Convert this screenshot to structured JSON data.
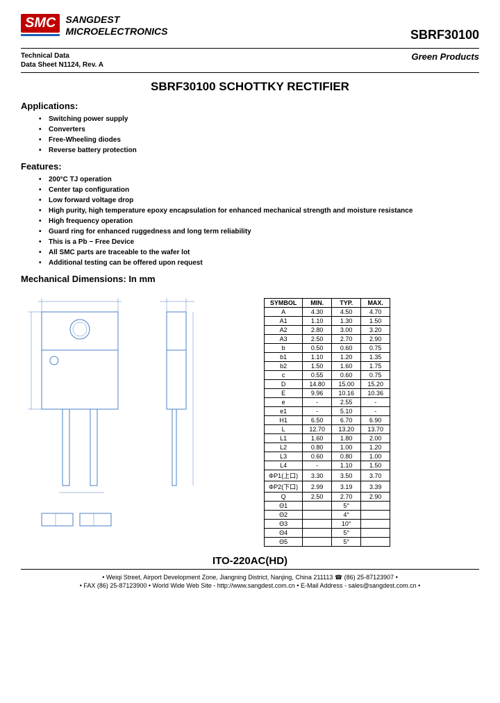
{
  "header": {
    "logo_text": "SMC",
    "company_line1": "SANGDEST",
    "company_line2": "MICROELECTRONICS",
    "part_number": "SBRF30100"
  },
  "subheader": {
    "tech_line1": "Technical Data",
    "tech_line2": "Data Sheet N1124, Rev. A",
    "green": "Green Products"
  },
  "title": "SBRF30100 SCHOTTKY RECTIFIER",
  "applications": {
    "heading": "Applications:",
    "items": [
      "Switching power supply",
      "Converters",
      "Free-Wheeling diodes",
      "Reverse battery protection"
    ]
  },
  "features": {
    "heading": "Features:",
    "items": [
      "200°C TJ operation",
      "Center tap configuration",
      "Low forward voltage drop",
      "High purity, high temperature epoxy encapsulation for enhanced mechanical strength and moisture resistance",
      "High frequency operation",
      "Guard ring for enhanced ruggedness and long term reliability",
      "This is a Pb − Free Device",
      "All SMC parts are traceable to the wafer lot",
      "Additional testing can be offered upon request"
    ]
  },
  "mech": {
    "heading": "Mechanical Dimensions: In mm"
  },
  "dim_table": {
    "headers": [
      "SYMBOL",
      "MIN.",
      "TYP.",
      "MAX."
    ],
    "rows": [
      [
        "A",
        "4.30",
        "4.50",
        "4.70"
      ],
      [
        "A1",
        "1.10",
        "1.30",
        "1.50"
      ],
      [
        "A2",
        "2.80",
        "3.00",
        "3.20"
      ],
      [
        "A3",
        "2.50",
        "2.70",
        "2.90"
      ],
      [
        "b",
        "0.50",
        "0.60",
        "0.75"
      ],
      [
        "b1",
        "1.10",
        "1.20",
        "1.35"
      ],
      [
        "b2",
        "1.50",
        "1.60",
        "1.75"
      ],
      [
        "c",
        "0.55",
        "0.60",
        "0.75"
      ],
      [
        "D",
        "14.80",
        "15.00",
        "15.20"
      ],
      [
        "E",
        "9.96",
        "10.16",
        "10.36"
      ],
      [
        "e",
        "-",
        "2.55",
        "-"
      ],
      [
        "e1",
        "-",
        "5.10",
        "-"
      ],
      [
        "H1",
        "6.50",
        "6.70",
        "6.90"
      ],
      [
        "L",
        "12.70",
        "13.20",
        "13.70"
      ],
      [
        "L1",
        "1.60",
        "1.80",
        "2.00"
      ],
      [
        "L2",
        "0.80",
        "1.00",
        "1.20"
      ],
      [
        "L3",
        "0.60",
        "0.80",
        "1.00"
      ],
      [
        "L4",
        "-",
        "1.10",
        "1.50"
      ],
      [
        "ΦP1(上口)",
        "3.30",
        "3.50",
        "3.70"
      ],
      [
        "ΦP2(下口)",
        "2.99",
        "3.19",
        "3.39"
      ],
      [
        "Q",
        "2.50",
        "2.70",
        "2.90"
      ],
      [
        "Θ1",
        "",
        "5°",
        ""
      ],
      [
        "Θ2",
        "",
        "4°",
        ""
      ],
      [
        "Θ3",
        "",
        "10°",
        ""
      ],
      [
        "Θ4",
        "",
        "5°",
        ""
      ],
      [
        "Θ5",
        "",
        "5°",
        ""
      ]
    ]
  },
  "package": "ITO-220AC(HD)",
  "footer": {
    "line1": "• Weiqi Street, Airport Development Zone, Jiangning District, Nanjing, China 211113 ☎ (86) 25-87123907 •",
    "line2": "• FAX (86) 25-87123900 • World Wide Web Site - http://www.sangdest.com.cn • E-Mail Address - sales@sangdest.com.cn •"
  },
  "colors": {
    "logo_red": "#c00000",
    "logo_blue": "#1a5fb4",
    "diagram_blue": "#4a7fc4"
  }
}
